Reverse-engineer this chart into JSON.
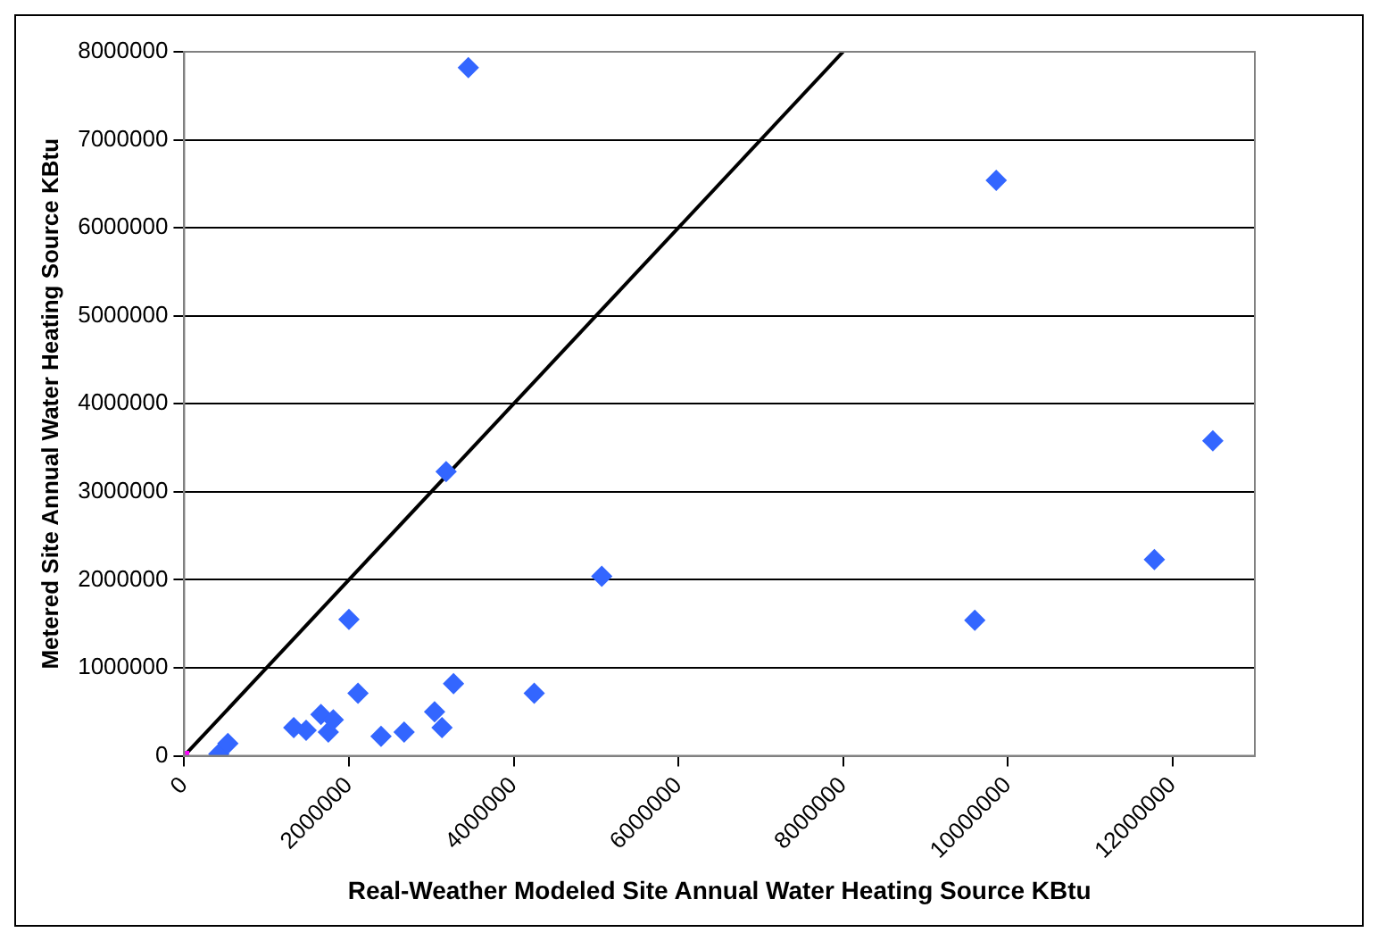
{
  "chart_data": {
    "type": "scatter",
    "xlabel": "Real-Weather Modeled Site Annual Water Heating Source KBtu",
    "ylabel": "Metered Site Annual Water Heating Source KBtu",
    "xlim": [
      0,
      13000000
    ],
    "xticks": [
      0,
      2000000,
      4000000,
      6000000,
      8000000,
      10000000,
      12000000
    ],
    "ylim": [
      0,
      8000000
    ],
    "yticks": [
      0,
      1000000,
      2000000,
      3000000,
      4000000,
      5000000,
      6000000,
      7000000,
      8000000
    ],
    "grid": "y",
    "legend": false,
    "series": [
      {
        "type": "scatter",
        "color": "#3366ff",
        "marker": "diamond",
        "x": [
          420000,
          530000,
          1330000,
          1480000,
          1660000,
          1750000,
          1810000,
          2000000,
          2110000,
          2390000,
          2670000,
          3040000,
          3130000,
          3270000,
          4250000,
          5070000,
          3450000,
          3180000,
          9860000,
          12490000,
          11780000,
          9600000
        ],
        "values": [
          20000,
          140000,
          320000,
          290000,
          470000,
          270000,
          410000,
          1550000,
          710000,
          220000,
          270000,
          500000,
          320000,
          820000,
          710000,
          2040000,
          7820000,
          3230000,
          6540000,
          3580000,
          2230000,
          1540000
        ]
      },
      {
        "type": "scatter",
        "color": "#ff00ff",
        "marker": "square",
        "x": [
          0
        ],
        "values": [
          0
        ]
      },
      {
        "type": "line",
        "color": "#000000",
        "marker": "none",
        "line_style": "solid",
        "x": [
          0,
          8000000
        ],
        "values": [
          0,
          8000000
        ]
      }
    ]
  }
}
